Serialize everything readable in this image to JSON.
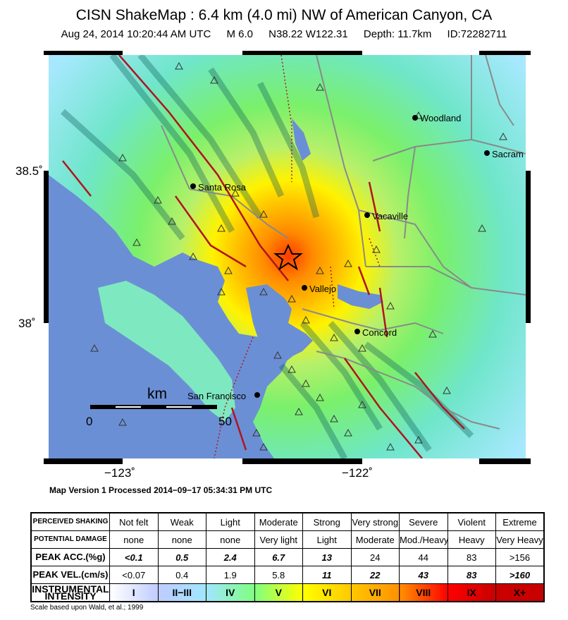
{
  "header": {
    "title": "CISN ShakeMap : 6.4 km (4.0 mi) NW of American Canyon, CA",
    "date": "Aug 24, 2014 10:20:44 AM UTC",
    "magnitude": "M 6.0",
    "location": "N38.22 W122.31",
    "depth": "Depth: 11.7km",
    "event_id": "ID:72282711"
  },
  "map": {
    "lat_labels": [
      "38.5˚",
      "38˚"
    ],
    "lon_labels": [
      "−123˚",
      "−122˚"
    ],
    "cities": [
      {
        "name": "Woodland"
      },
      {
        "name": "Sacram"
      },
      {
        "name": "Santa Rosa"
      },
      {
        "name": "Vacaville"
      },
      {
        "name": "Vallejo"
      },
      {
        "name": "Concord"
      },
      {
        "name": "San Francisco"
      }
    ],
    "scale": {
      "unit": "km",
      "min": "0",
      "max": "50"
    },
    "colors": {
      "water": "#6b8fd4",
      "intensity_v": "#7af06b",
      "intensity_vii": "#ffc800",
      "epicenter": "#000000"
    }
  },
  "version": "Map Version 1 Processed 2014−09−17 05:34:31 PM UTC",
  "legend": {
    "rows": [
      {
        "key": "perceived",
        "head": "PERCEIVED SHAKING",
        "cells": [
          "Not felt",
          "Weak",
          "Light",
          "Moderate",
          "Strong",
          "Very strong",
          "Severe",
          "Violent",
          "Extreme"
        ]
      },
      {
        "key": "damage",
        "head": "POTENTIAL DAMAGE",
        "cells": [
          "none",
          "none",
          "none",
          "Very light",
          "Light",
          "Moderate",
          "Mod./Heavy",
          "Heavy",
          "Very Heavy"
        ]
      },
      {
        "key": "pga",
        "head": "PEAK ACC.(%g)",
        "cells": [
          "<0.1",
          "0.5",
          "2.4",
          "6.7",
          "13",
          "24",
          "44",
          "83",
          ">156"
        ]
      },
      {
        "key": "pgv",
        "head": "PEAK VEL.(cm/s)",
        "cells": [
          "<0.07",
          "0.4",
          "1.9",
          "5.8",
          "11",
          "22",
          "43",
          "83",
          ">160"
        ]
      },
      {
        "key": "mmi",
        "head": "INSTRUMENTAL INTENSITY",
        "cells": [
          "I",
          "II−III",
          "IV",
          "V",
          "VI",
          "VII",
          "VIII",
          "IX",
          "X+"
        ]
      }
    ],
    "mmi_colors": [
      "#ffffff",
      "#bfccff",
      "#a0e6ff",
      "#7fff7f",
      "#ffff00",
      "#ffc800",
      "#ff9100",
      "#ff0000",
      "#c80000"
    ]
  },
  "footnote": "Scale based upon Wald, et al.; 1999"
}
